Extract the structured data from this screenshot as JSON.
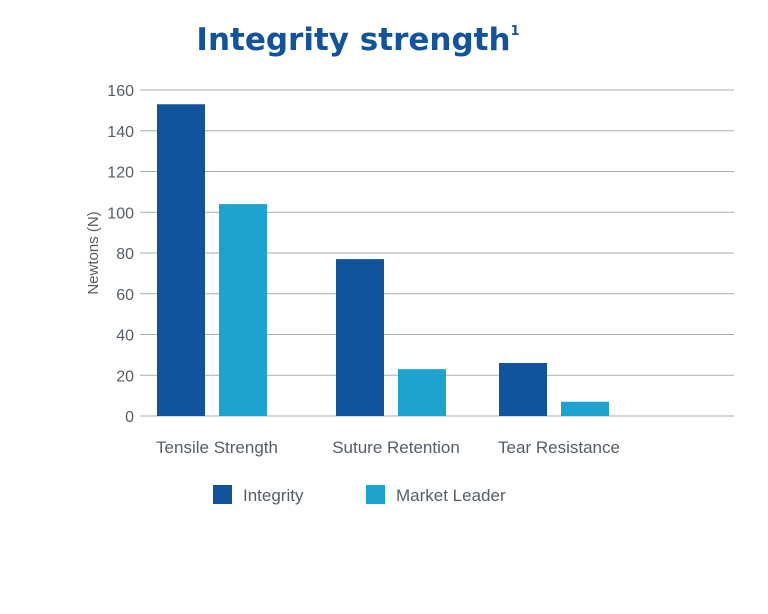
{
  "chart_data": {
    "type": "bar",
    "title": "Integrity strength",
    "title_superscript": "1",
    "ylabel": "Newtons (N)",
    "xlabel": "",
    "ylim": [
      0,
      160
    ],
    "yticks": [
      0,
      20,
      40,
      60,
      80,
      100,
      120,
      140,
      160
    ],
    "categories": [
      "Tensile Strength",
      "Suture Retention",
      "Tear Resistance"
    ],
    "series": [
      {
        "name": "Integrity",
        "values": [
          153,
          77,
          26
        ],
        "color": "#12549B"
      },
      {
        "name": "Market Leader",
        "values": [
          104,
          23,
          7
        ],
        "color": "#1EA3CE"
      }
    ],
    "grid": true,
    "legend_position": "bottom"
  }
}
